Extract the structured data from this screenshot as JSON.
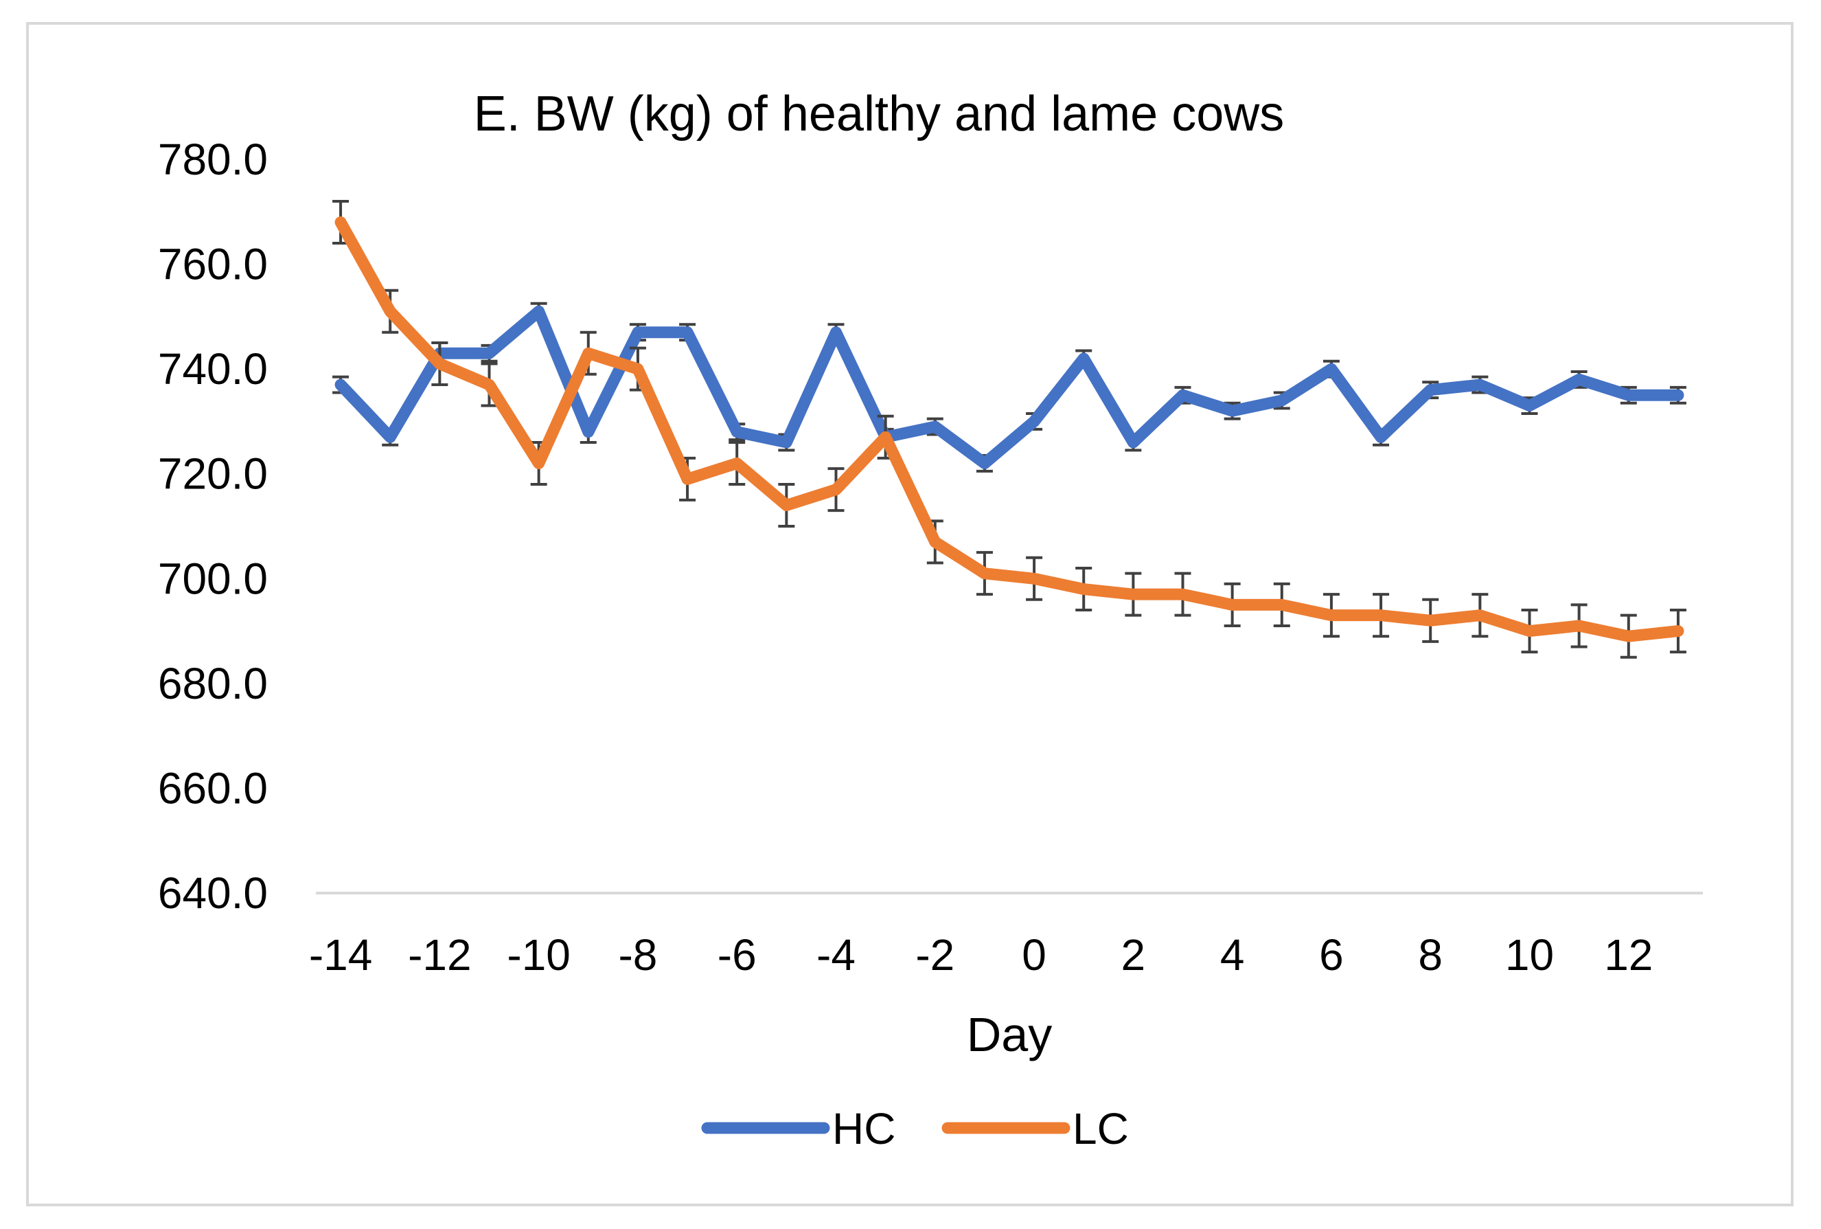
{
  "chart_data": {
    "type": "line",
    "title": "E. BW (kg) of healthy and lame cows",
    "xlabel": "Day",
    "ylabel": "",
    "ylim": [
      640,
      780
    ],
    "yticks": [
      "640.0",
      "660.0",
      "680.0",
      "700.0",
      "720.0",
      "740.0",
      "760.0",
      "780.0"
    ],
    "xticks": [
      "-14",
      "-12",
      "-10",
      "-8",
      "-6",
      "-4",
      "-2",
      "0",
      "2",
      "4",
      "6",
      "8",
      "10",
      "12"
    ],
    "x": [
      -14,
      -13,
      -12,
      -11,
      -10,
      -9,
      -8,
      -7,
      -6,
      -5,
      -4,
      -3,
      -2,
      -1,
      0,
      1,
      2,
      3,
      4,
      5,
      6,
      7,
      8,
      9,
      10,
      11,
      12,
      13
    ],
    "grid": false,
    "legend_position": "bottom",
    "series": [
      {
        "name": "HC",
        "color": "#4472C4",
        "values": [
          737,
          727,
          743,
          743,
          751,
          728,
          747,
          747,
          728,
          726,
          747,
          727,
          729,
          722,
          730,
          742,
          726,
          735,
          732,
          734,
          740,
          727,
          736,
          737,
          733,
          738,
          735,
          735
        ],
        "error": [
          1.5,
          1.5,
          2,
          1.5,
          1.5,
          2,
          1.5,
          1.5,
          1.5,
          1.5,
          1.5,
          1.5,
          1.5,
          1.5,
          1.5,
          1.5,
          1.5,
          1.5,
          1.5,
          1.5,
          1.5,
          1.5,
          1.5,
          1.5,
          1.5,
          1.5,
          1.5,
          1.5
        ]
      },
      {
        "name": "LC",
        "color": "#ED7D31",
        "values": [
          768,
          751,
          741,
          737,
          722,
          743,
          740,
          719,
          722,
          714,
          717,
          727,
          707,
          701,
          700,
          698,
          697,
          697,
          695,
          695,
          693,
          693,
          692,
          693,
          690,
          691,
          689,
          690
        ],
        "error": [
          4,
          4,
          4,
          4,
          4,
          4,
          4,
          4,
          4,
          4,
          4,
          4,
          4,
          4,
          4,
          4,
          4,
          4,
          4,
          4,
          4,
          4,
          4,
          4,
          4,
          4,
          4,
          4
        ]
      }
    ]
  }
}
